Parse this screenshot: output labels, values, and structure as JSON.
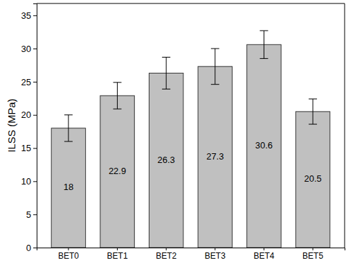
{
  "chart_data": {
    "type": "bar",
    "y_label": "ILSS (MPa)",
    "categories": [
      "BET0",
      "BET1",
      "BET2",
      "BET3",
      "BET4",
      "BET5"
    ],
    "values": [
      18,
      22.9,
      26.3,
      27.3,
      30.6,
      20.5
    ],
    "errors": [
      2.0,
      2.0,
      2.4,
      2.7,
      2.1,
      1.9
    ],
    "color": "#c0c0c0",
    "ylim": [
      0,
      36.8
    ],
    "yticks": [
      0,
      5,
      10,
      15,
      20,
      25,
      30,
      35
    ],
    "grid": false,
    "data_labels": true
  }
}
